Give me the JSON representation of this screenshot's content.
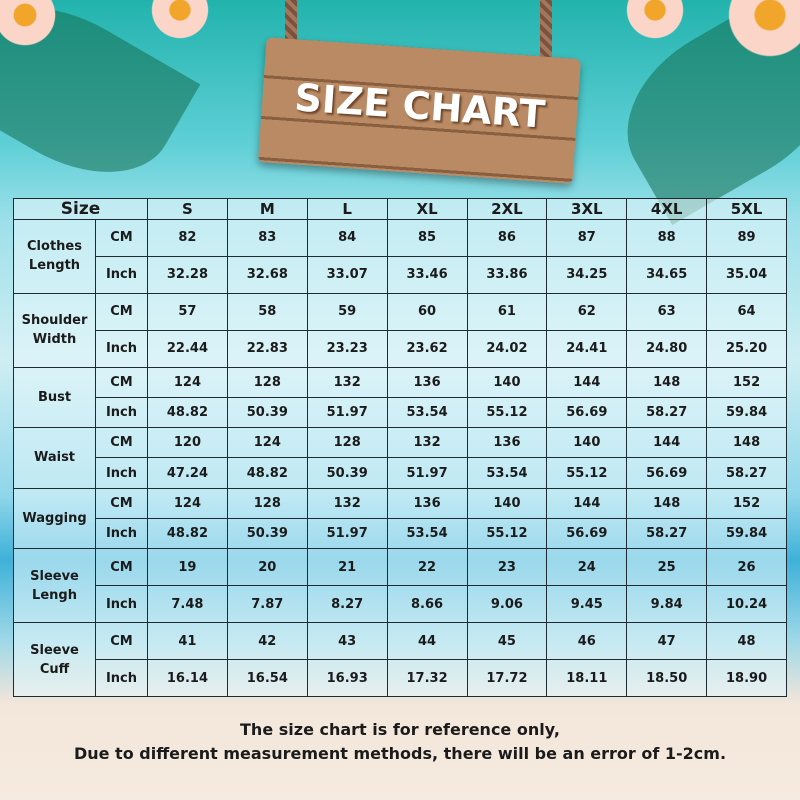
{
  "title": "SIZE CHART",
  "header": {
    "size_label": "Size",
    "sizes": [
      "S",
      "M",
      "L",
      "XL",
      "2XL",
      "3XL",
      "4XL",
      "5XL"
    ]
  },
  "units": [
    "CM",
    "Inch"
  ],
  "rows": [
    {
      "label": "Clothes Length",
      "cm": [
        "82",
        "83",
        "84",
        "85",
        "86",
        "87",
        "88",
        "89"
      ],
      "inch": [
        "32.28",
        "32.68",
        "33.07",
        "33.46",
        "33.86",
        "34.25",
        "34.65",
        "35.04"
      ]
    },
    {
      "label": "Shoulder Width",
      "cm": [
        "57",
        "58",
        "59",
        "60",
        "61",
        "62",
        "63",
        "64"
      ],
      "inch": [
        "22.44",
        "22.83",
        "23.23",
        "23.62",
        "24.02",
        "24.41",
        "24.80",
        "25.20"
      ]
    },
    {
      "label": "Bust",
      "cm": [
        "124",
        "128",
        "132",
        "136",
        "140",
        "144",
        "148",
        "152"
      ],
      "inch": [
        "48.82",
        "50.39",
        "51.97",
        "53.54",
        "55.12",
        "56.69",
        "58.27",
        "59.84"
      ]
    },
    {
      "label": "Waist",
      "cm": [
        "120",
        "124",
        "128",
        "132",
        "136",
        "140",
        "144",
        "148"
      ],
      "inch": [
        "47.24",
        "48.82",
        "50.39",
        "51.97",
        "53.54",
        "55.12",
        "56.69",
        "58.27"
      ]
    },
    {
      "label": "Wagging",
      "cm": [
        "124",
        "128",
        "132",
        "136",
        "140",
        "144",
        "148",
        "152"
      ],
      "inch": [
        "48.82",
        "50.39",
        "51.97",
        "53.54",
        "55.12",
        "56.69",
        "58.27",
        "59.84"
      ]
    },
    {
      "label": "Sleeve Lengh",
      "cm": [
        "19",
        "20",
        "21",
        "22",
        "23",
        "24",
        "25",
        "26"
      ],
      "inch": [
        "7.48",
        "7.87",
        "8.27",
        "8.66",
        "9.06",
        "9.45",
        "9.84",
        "10.24"
      ]
    },
    {
      "label": "Sleeve Cuff",
      "cm": [
        "41",
        "42",
        "43",
        "44",
        "45",
        "46",
        "47",
        "48"
      ],
      "inch": [
        "16.14",
        "16.54",
        "16.93",
        "17.32",
        "17.72",
        "18.11",
        "18.50",
        "18.90"
      ]
    }
  ],
  "note": {
    "line1": "The size chart is for reference only,",
    "line2": "Due to different measurement methods, there will be an error of 1-2cm."
  }
}
